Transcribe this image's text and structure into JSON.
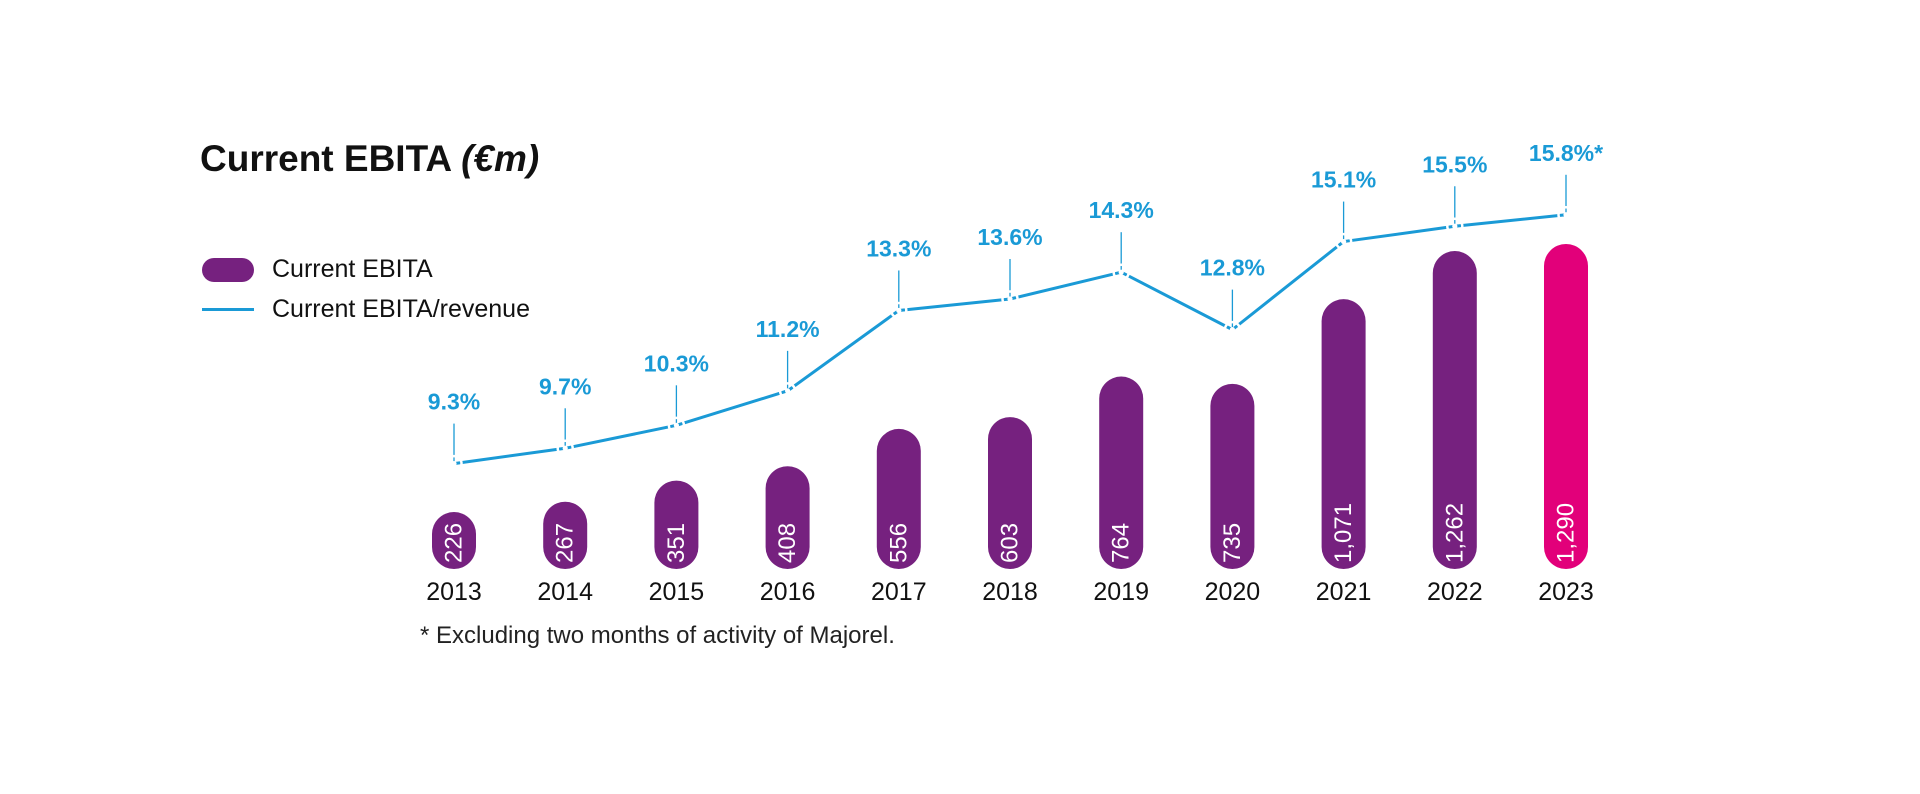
{
  "colors": {
    "bar": "#76217f",
    "bar_highlight": "#e2007a",
    "line": "#1a9ad6",
    "text": "#111111",
    "bar_label": "#ffffff"
  },
  "legend": {
    "bar_label": "Current EBITA",
    "line_label": "Current EBITA/revenue"
  },
  "chart_data": {
    "type": "bar",
    "title": "Current EBITA",
    "title_unit": "(€m)",
    "categories": [
      "2013",
      "2014",
      "2015",
      "2016",
      "2017",
      "2018",
      "2019",
      "2020",
      "2021",
      "2022",
      "2023"
    ],
    "series": [
      {
        "name": "Current EBITA",
        "type": "bar",
        "values": [
          226,
          267,
          351,
          408,
          556,
          603,
          764,
          735,
          1071,
          1262,
          1290
        ],
        "labels": [
          "226",
          "267",
          "351",
          "408",
          "556",
          "603",
          "764",
          "735",
          "1,071",
          "1,262",
          "1,290"
        ],
        "highlight_index": 10
      },
      {
        "name": "Current EBITA/revenue",
        "type": "line",
        "values": [
          9.3,
          9.7,
          10.3,
          11.2,
          13.3,
          13.6,
          14.3,
          12.8,
          15.1,
          15.5,
          15.8
        ],
        "labels": [
          "9.3%",
          "9.7%",
          "10.3%",
          "11.2%",
          "13.3%",
          "13.6%",
          "14.3%",
          "12.8%",
          "15.1%",
          "15.5%",
          "15.8%*"
        ]
      }
    ],
    "footnote": "* Excluding two months of activity of Majorel."
  }
}
